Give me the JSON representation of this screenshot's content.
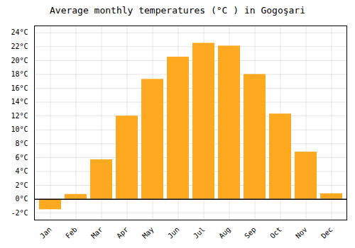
{
  "chart_data": {
    "type": "bar",
    "title": "Average monthly temperatures (°C ) in Gogoşari",
    "categories": [
      "Jan",
      "Feb",
      "Mar",
      "Apr",
      "May",
      "Jun",
      "Jul",
      "Aug",
      "Sep",
      "Oct",
      "Nov",
      "Dec"
    ],
    "values": [
      -1.5,
      0.7,
      5.7,
      12.0,
      17.3,
      20.5,
      22.5,
      22.1,
      18.0,
      12.3,
      6.8,
      0.8
    ],
    "color": "#FFA920",
    "ylim": [
      -3,
      25
    ],
    "yticks": [
      {
        "value": -2,
        "label": "-2°C"
      },
      {
        "value": 0,
        "label": "0°C"
      },
      {
        "value": 2,
        "label": "2°C"
      },
      {
        "value": 4,
        "label": "4°C"
      },
      {
        "value": 6,
        "label": "6°C"
      },
      {
        "value": 8,
        "label": "8°C"
      },
      {
        "value": 10,
        "label": "10°C"
      },
      {
        "value": 12,
        "label": "12°C"
      },
      {
        "value": 14,
        "label": "14°C"
      },
      {
        "value": 16,
        "label": "16°C"
      },
      {
        "value": 18,
        "label": "18°C"
      },
      {
        "value": 20,
        "label": "20°C"
      },
      {
        "value": 22,
        "label": "22°C"
      },
      {
        "value": 24,
        "label": "24°C"
      }
    ],
    "grid": true
  }
}
